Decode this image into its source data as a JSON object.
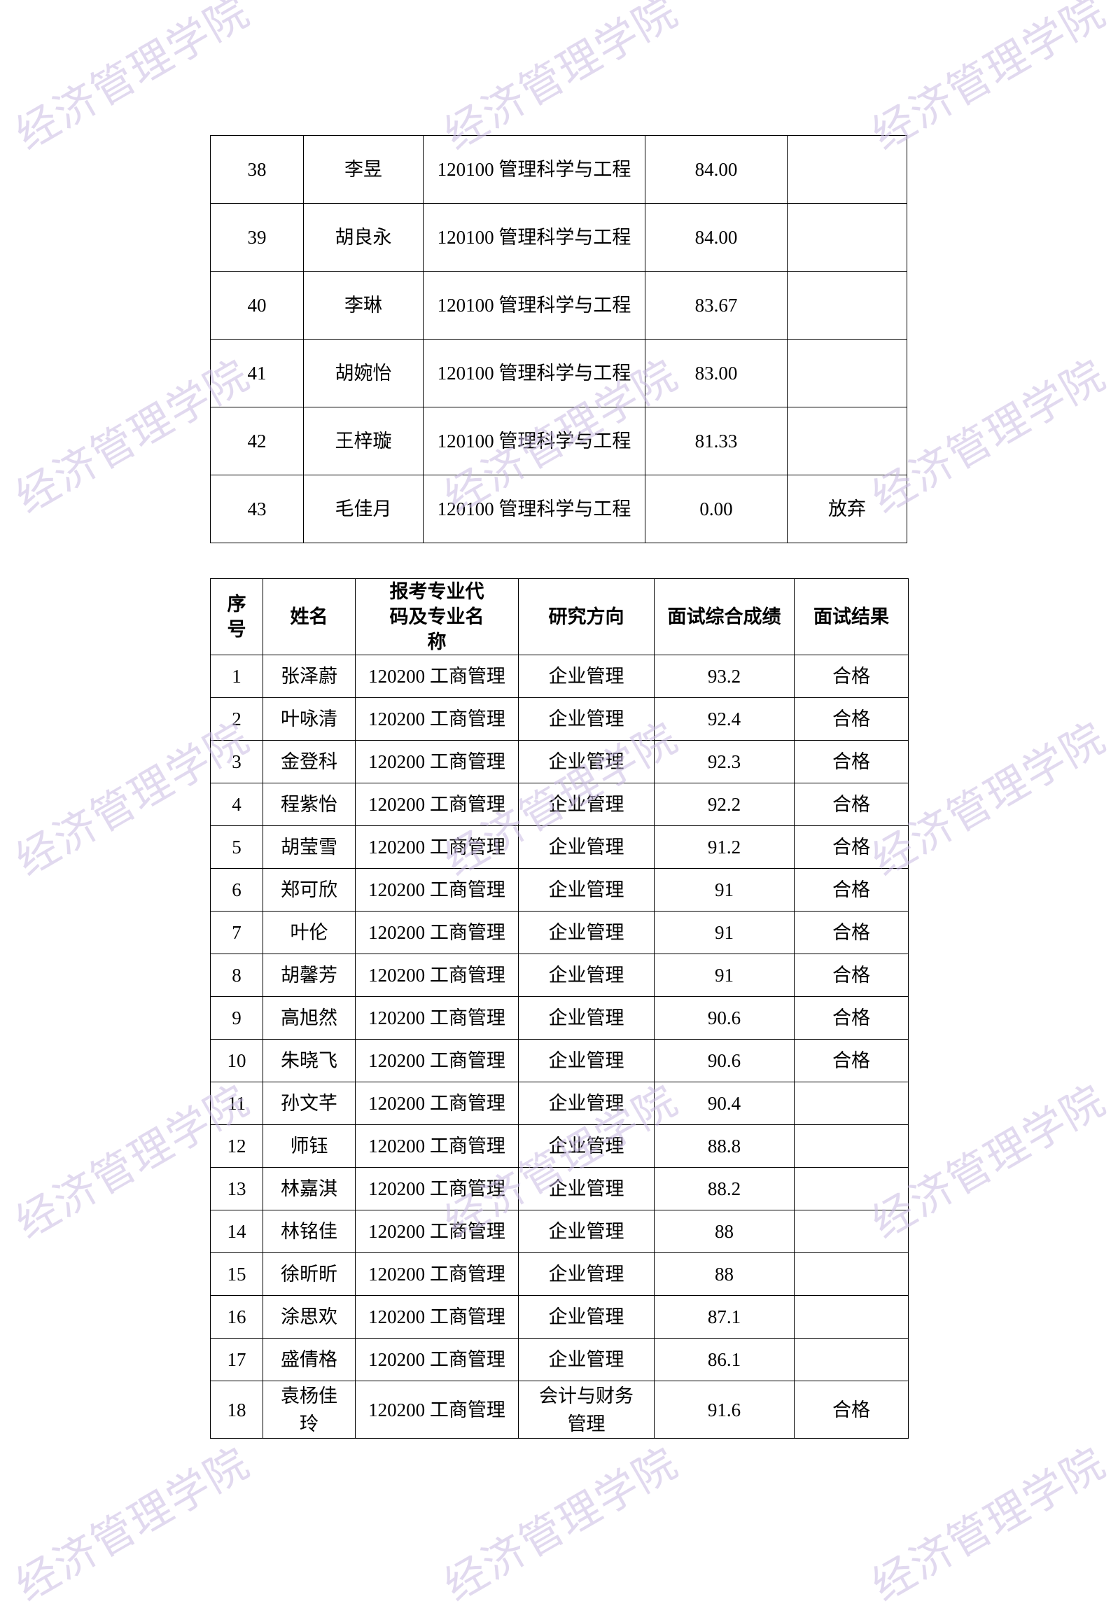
{
  "watermark": "经济管理学院",
  "table1": {
    "rows": [
      [
        "38",
        "李昱",
        "120100 管理科学与工程",
        "84.00",
        ""
      ],
      [
        "39",
        "胡良永",
        "120100 管理科学与工程",
        "84.00",
        ""
      ],
      [
        "40",
        "李琳",
        "120100 管理科学与工程",
        "83.67",
        ""
      ],
      [
        "41",
        "胡婉怡",
        "120100 管理科学与工程",
        "83.00",
        ""
      ],
      [
        "42",
        "王梓璇",
        "120100 管理科学与工程",
        "81.33",
        ""
      ],
      [
        "43",
        "毛佳月",
        "120100 管理科学与工程",
        "0.00",
        "放弃"
      ]
    ]
  },
  "table2": {
    "headers": [
      "序号",
      "姓名",
      "报考专业代码及专业名称",
      "研究方向",
      "面试综合成绩",
      "面试结果"
    ],
    "rows": [
      [
        "1",
        "张泽蔚",
        "120200 工商管理",
        "企业管理",
        "93.2",
        "合格"
      ],
      [
        "2",
        "叶咏清",
        "120200 工商管理",
        "企业管理",
        "92.4",
        "合格"
      ],
      [
        "3",
        "金登科",
        "120200 工商管理",
        "企业管理",
        "92.3",
        "合格"
      ],
      [
        "4",
        "程紫怡",
        "120200 工商管理",
        "企业管理",
        "92.2",
        "合格"
      ],
      [
        "5",
        "胡莹雪",
        "120200 工商管理",
        "企业管理",
        "91.2",
        "合格"
      ],
      [
        "6",
        "郑可欣",
        "120200 工商管理",
        "企业管理",
        "91",
        "合格"
      ],
      [
        "7",
        "叶伦",
        "120200 工商管理",
        "企业管理",
        "91",
        "合格"
      ],
      [
        "8",
        "胡馨芳",
        "120200 工商管理",
        "企业管理",
        "91",
        "合格"
      ],
      [
        "9",
        "高旭然",
        "120200 工商管理",
        "企业管理",
        "90.6",
        "合格"
      ],
      [
        "10",
        "朱晓飞",
        "120200 工商管理",
        "企业管理",
        "90.6",
        "合格"
      ],
      [
        "11",
        "孙文芊",
        "120200 工商管理",
        "企业管理",
        "90.4",
        ""
      ],
      [
        "12",
        "师钰",
        "120200 工商管理",
        "企业管理",
        "88.8",
        ""
      ],
      [
        "13",
        "林嘉淇",
        "120200 工商管理",
        "企业管理",
        "88.2",
        ""
      ],
      [
        "14",
        "林铭佳",
        "120200 工商管理",
        "企业管理",
        "88",
        ""
      ],
      [
        "15",
        "徐昕昕",
        "120200 工商管理",
        "企业管理",
        "88",
        ""
      ],
      [
        "16",
        "涂思欢",
        "120200 工商管理",
        "企业管理",
        "87.1",
        ""
      ],
      [
        "17",
        "盛倩格",
        "120200 工商管理",
        "企业管理",
        "86.1",
        ""
      ],
      [
        "18",
        "袁杨佳玲",
        "120200 工商管理",
        "会计与财务管理",
        "91.6",
        "合格"
      ]
    ]
  }
}
